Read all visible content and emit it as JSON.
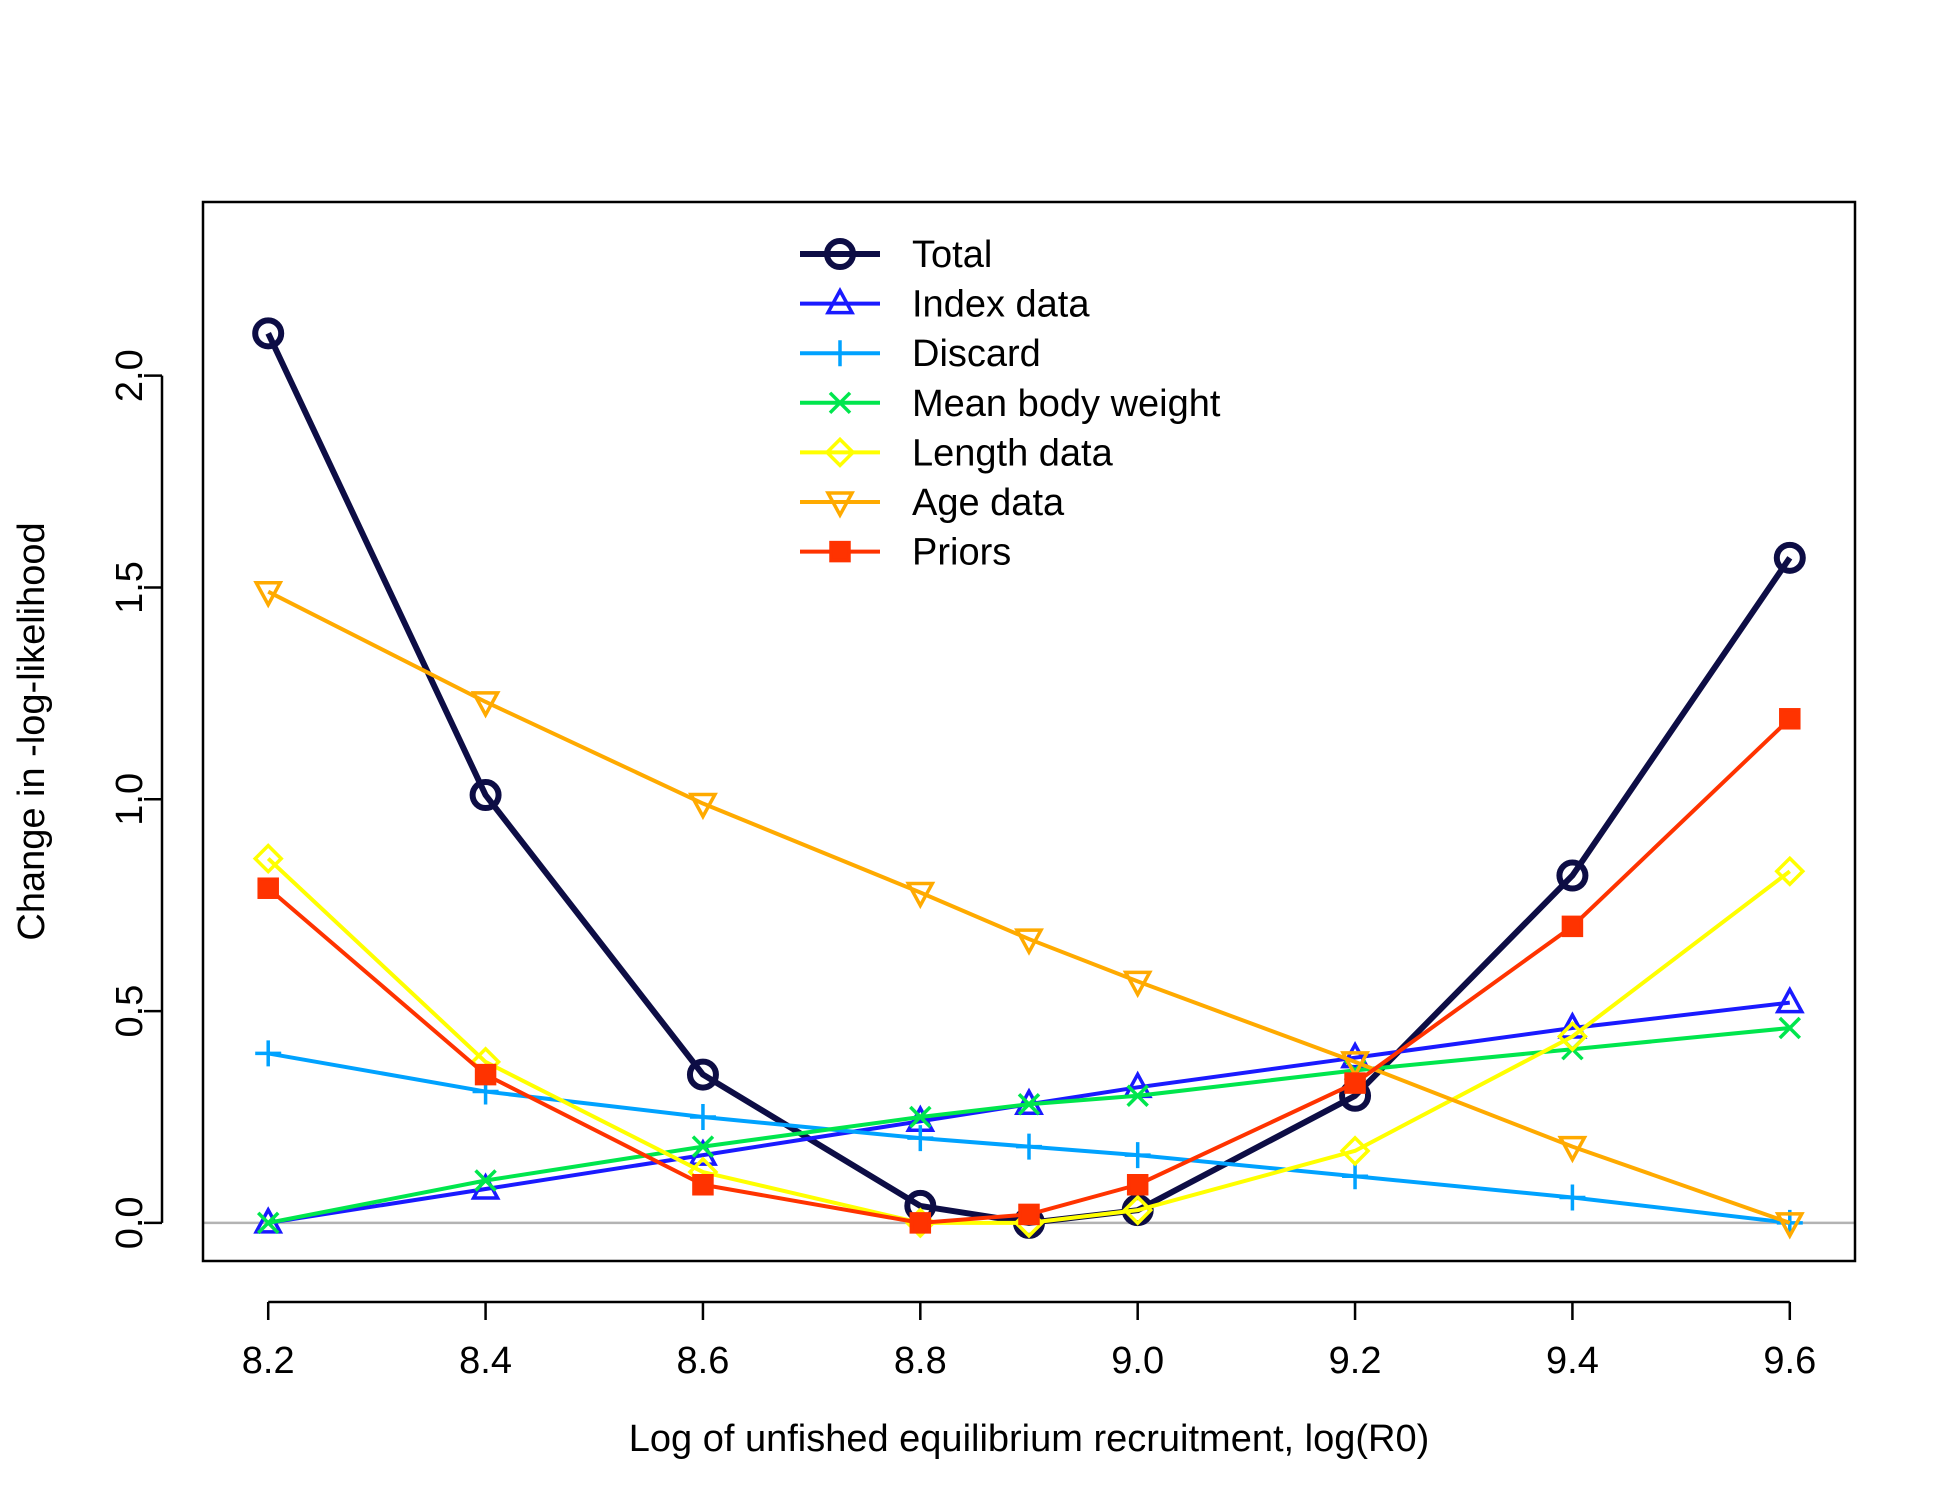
{
  "chart_data": {
    "type": "line",
    "title": "",
    "xlabel": "Log of unfished equilibrium recruitment, log(R0)",
    "ylabel": "Change in -log-likelihood",
    "xlim": [
      8.14,
      9.66
    ],
    "ylim": [
      -0.09,
      2.41
    ],
    "x_ticks": [
      "8.2",
      "8.4",
      "8.6",
      "8.8",
      "9.0",
      "9.2",
      "9.4",
      "9.6"
    ],
    "y_ticks": [
      "0.0",
      "0.5",
      "1.0",
      "1.5",
      "2.0"
    ],
    "grid": false,
    "reference_line": {
      "y": 0,
      "color": "#b3b3b3"
    },
    "legend": {
      "position": "top-center"
    },
    "x": [
      8.2,
      8.4,
      8.6,
      8.8,
      8.9,
      9.0,
      9.2,
      9.4,
      9.6
    ],
    "series": [
      {
        "name": "Total",
        "color": "#0d0d45",
        "marker": "circle",
        "thick": true,
        "values": [
          2.1,
          1.01,
          0.35,
          0.04,
          0.0,
          0.03,
          0.3,
          0.82,
          1.57
        ]
      },
      {
        "name": "Index data",
        "color": "#1a1aff",
        "marker": "triangle-up",
        "values": [
          0.0,
          0.08,
          0.16,
          0.24,
          0.28,
          0.32,
          0.39,
          0.46,
          0.52
        ]
      },
      {
        "name": "Discard",
        "color": "#00a2ff",
        "marker": "plus",
        "values": [
          0.4,
          0.31,
          0.25,
          0.2,
          0.18,
          0.16,
          0.11,
          0.06,
          0.0
        ]
      },
      {
        "name": "Mean body weight",
        "color": "#00e64d",
        "marker": "cross",
        "values": [
          0.0,
          0.1,
          0.18,
          0.25,
          0.28,
          0.3,
          0.36,
          0.41,
          0.46
        ]
      },
      {
        "name": "Length data",
        "color": "#ffff00",
        "marker": "diamond",
        "values": [
          0.86,
          0.38,
          0.12,
          0.0,
          0.0,
          0.03,
          0.17,
          0.44,
          0.83
        ]
      },
      {
        "name": "Age data",
        "color": "#ffaa00",
        "marker": "triangle-down",
        "values": [
          1.49,
          1.23,
          0.99,
          0.78,
          0.67,
          0.57,
          0.38,
          0.18,
          0.0
        ]
      },
      {
        "name": "Priors",
        "color": "#ff3300",
        "marker": "square",
        "values": [
          0.79,
          0.35,
          0.09,
          0.0,
          0.02,
          0.09,
          0.33,
          0.7,
          1.19
        ]
      }
    ]
  }
}
